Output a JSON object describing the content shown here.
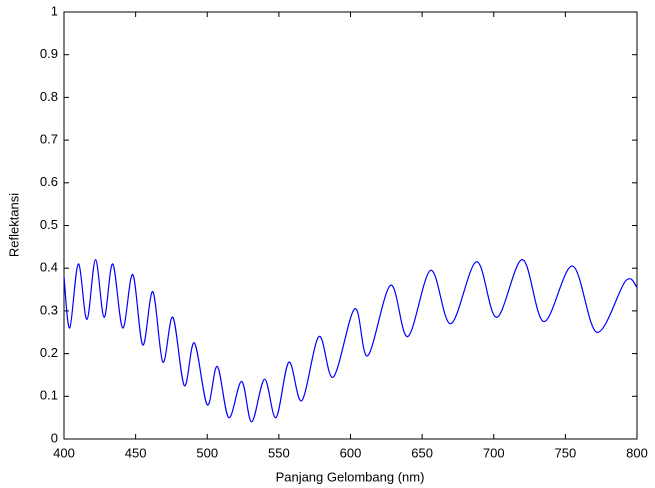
{
  "chart_data": {
    "type": "line",
    "xlabel": "Panjang Gelombang (nm)",
    "ylabel": "Reflektansi",
    "x": [
      400,
      404,
      410,
      416,
      422,
      428,
      434,
      441,
      448,
      455,
      462,
      469,
      476,
      484,
      491,
      500,
      507,
      515,
      524,
      531,
      540,
      548,
      557,
      566,
      578,
      588,
      603,
      612,
      628,
      640,
      656,
      670,
      688,
      702,
      720,
      735,
      755,
      772,
      792,
      800
    ],
    "series": [
      {
        "color": "#0000ff",
        "values": [
          0.38,
          0.26,
          0.41,
          0.28,
          0.42,
          0.285,
          0.41,
          0.26,
          0.385,
          0.22,
          0.345,
          0.18,
          0.285,
          0.125,
          0.225,
          0.08,
          0.17,
          0.05,
          0.135,
          0.04,
          0.14,
          0.05,
          0.18,
          0.09,
          0.24,
          0.145,
          0.305,
          0.195,
          0.36,
          0.24,
          0.395,
          0.27,
          0.415,
          0.285,
          0.42,
          0.275,
          0.405,
          0.25,
          0.37,
          0.355
        ]
      }
    ],
    "xlim": [
      400,
      800
    ],
    "xticks": [
      400,
      450,
      500,
      550,
      600,
      650,
      700,
      750,
      800
    ],
    "ylim": [
      0,
      1
    ],
    "yticks": [
      0,
      0.1,
      0.2,
      0.3,
      0.4,
      0.5,
      0.6,
      0.7,
      0.8,
      0.9,
      1
    ]
  }
}
